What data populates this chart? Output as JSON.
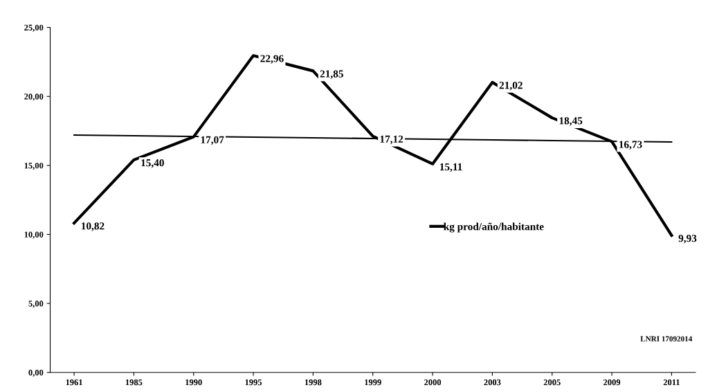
{
  "chart_data": {
    "type": "line",
    "categories": [
      "1961",
      "1985",
      "1990",
      "1995",
      "1998",
      "1999",
      "2000",
      "2003",
      "2005",
      "2009",
      "2011"
    ],
    "series": [
      {
        "name": "kg prod/año/habitante",
        "color": "#000000",
        "values": [
          10.82,
          15.4,
          17.07,
          22.96,
          21.85,
          17.12,
          15.11,
          21.02,
          18.45,
          16.73,
          9.93
        ],
        "value_labels": [
          "10,82",
          "15,40",
          "17,07",
          "22,96",
          "21,85",
          "17,12",
          "15,11",
          "21,02",
          "18,45",
          "16,73",
          "9,93"
        ]
      },
      {
        "type": "line",
        "color": "#000000",
        "values": [
          17.2,
          17.15,
          17.1,
          17.05,
          17.0,
          16.95,
          16.9,
          16.85,
          16.8,
          16.75,
          16.7
        ]
      }
    ],
    "ylim": [
      0,
      25
    ],
    "yticks": [
      {
        "value": 0,
        "label": "0,00"
      },
      {
        "value": 5,
        "label": "5,00"
      },
      {
        "value": 10,
        "label": "10,00"
      },
      {
        "value": 15,
        "label": "15,00"
      },
      {
        "value": 20,
        "label": "20,00"
      },
      {
        "value": 25,
        "label": "25,00"
      }
    ],
    "grid": false,
    "legend": "right",
    "marker": "none",
    "line_style": "solid",
    "annotations": [
      "LNRI 17092014"
    ]
  }
}
